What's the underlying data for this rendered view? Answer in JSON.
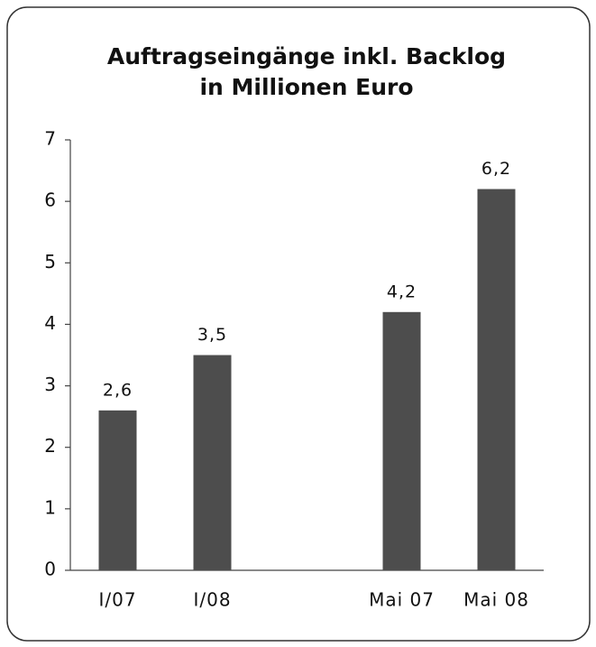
{
  "chart_data": {
    "type": "bar",
    "title": [
      "Auftragseingänge inkl. Backlog",
      "in Millionen Euro"
    ],
    "categories": [
      "I/07",
      "I/08",
      null,
      "Mai 07",
      "Mai 08"
    ],
    "values": [
      2.6,
      3.5,
      null,
      4.2,
      6.2
    ],
    "value_labels": [
      "2,6",
      "3,5",
      null,
      "4,2",
      "6,2"
    ],
    "color": "#4d4d4d",
    "ylim": [
      0,
      7
    ],
    "yticks": [
      0,
      1,
      2,
      3,
      4,
      5,
      6,
      7
    ],
    "grid": false
  }
}
